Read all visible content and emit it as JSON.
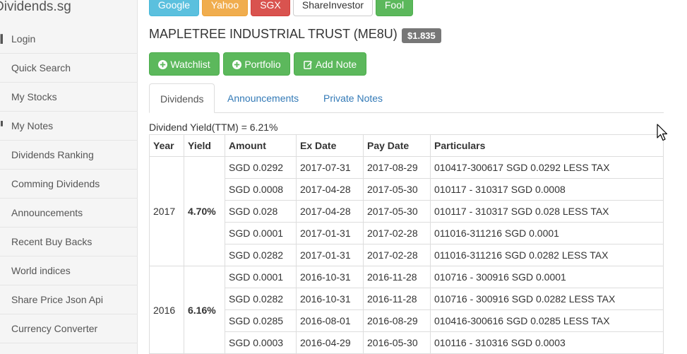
{
  "sidebar": {
    "brand": "Dividends.sg",
    "items": [
      {
        "label": "Login",
        "icon": "login-icon"
      },
      {
        "label": "Quick Search",
        "icon": "search-icon"
      },
      {
        "label": "My Stocks",
        "icon": "stocks-icon"
      },
      {
        "label": "My Notes",
        "icon": "notes-icon"
      },
      {
        "label": "Dividends Ranking",
        "icon": "ranking-icon"
      },
      {
        "label": "Comming Dividends",
        "icon": "calendar-icon"
      },
      {
        "label": "Announcements",
        "icon": "announcement-icon"
      },
      {
        "label": "Recent Buy Backs",
        "icon": "buyback-icon"
      },
      {
        "label": "World indices",
        "icon": "globe-icon"
      },
      {
        "label": "Share Price Json Api",
        "icon": "api-icon"
      },
      {
        "label": "Currency Converter",
        "icon": "currency-icon"
      }
    ]
  },
  "links": {
    "google": "Google",
    "yahoo": "Yahoo",
    "sgx": "SGX",
    "shareinvestor": "ShareInvestor",
    "fool": "Fool"
  },
  "stock": {
    "title": "MAPLETREE INDUSTRIAL TRUST (ME8U)",
    "price": "$1.835"
  },
  "actions": {
    "watchlist": "Watchlist",
    "portfolio": "Portfolio",
    "add_note": "Add Note"
  },
  "tabs": {
    "dividends": "Dividends",
    "announcements": "Announcements",
    "private_notes": "Private Notes"
  },
  "dividend_yield": "Dividend Yield(TTM) = 6.21%",
  "table": {
    "headers": [
      "Year",
      "Yield",
      "Amount",
      "Ex Date",
      "Pay Date",
      "Particulars"
    ],
    "groups": [
      {
        "year": "2017",
        "yield": "4.70%",
        "rows": [
          {
            "amount": "SGD 0.0292",
            "ex_date": "2017-07-31",
            "pay_date": "2017-08-29",
            "particulars": "010417-300617 SGD 0.0292 LESS TAX"
          },
          {
            "amount": "SGD 0.0008",
            "ex_date": "2017-04-28",
            "pay_date": "2017-05-30",
            "particulars": "010117 - 310317 SGD 0.0008"
          },
          {
            "amount": "SGD 0.028",
            "ex_date": "2017-04-28",
            "pay_date": "2017-05-30",
            "particulars": "010117 - 310317 SGD 0.028 LESS TAX"
          },
          {
            "amount": "SGD 0.0001",
            "ex_date": "2017-01-31",
            "pay_date": "2017-02-28",
            "particulars": "011016-311216 SGD 0.0001"
          },
          {
            "amount": "SGD 0.0282",
            "ex_date": "2017-01-31",
            "pay_date": "2017-02-28",
            "particulars": "011016-311216 SGD 0.0282 LESS TAX"
          }
        ]
      },
      {
        "year": "2016",
        "yield": "6.16%",
        "rows": [
          {
            "amount": "SGD 0.0001",
            "ex_date": "2016-10-31",
            "pay_date": "2016-11-28",
            "particulars": "010716 - 300916 SGD 0.0001"
          },
          {
            "amount": "SGD 0.0282",
            "ex_date": "2016-10-31",
            "pay_date": "2016-11-28",
            "particulars": "010716 - 300916 SGD 0.0282 LESS TAX"
          },
          {
            "amount": "SGD 0.0285",
            "ex_date": "2016-08-01",
            "pay_date": "2016-08-29",
            "particulars": "010416-300616 SGD 0.0285 LESS TAX"
          },
          {
            "amount": "SGD 0.0003",
            "ex_date": "2016-04-29",
            "pay_date": "2016-05-30",
            "particulars": "010116 - 310316 SGD 0.0003"
          }
        ]
      }
    ]
  },
  "colors": {
    "success": "#5cb85c",
    "info": "#5bc0de",
    "warning": "#f0ad4e",
    "danger": "#d9534f",
    "link": "#337ab7",
    "label": "#777777"
  }
}
